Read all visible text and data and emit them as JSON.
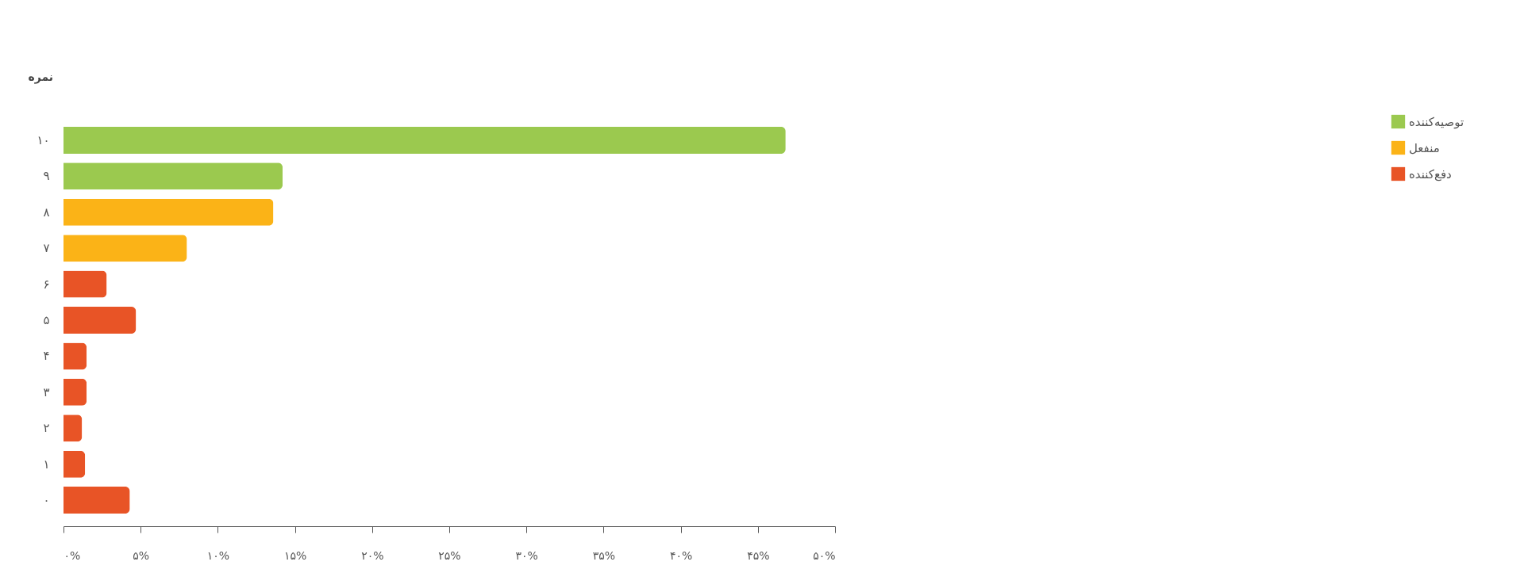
{
  "chart_data": {
    "type": "bar",
    "orientation": "horizontal",
    "stacked": true,
    "ylabel": "نمره",
    "categories": [
      "۱۰",
      "۹",
      "۸",
      "۷",
      "۶",
      "۵",
      "۴",
      "۳",
      "۲",
      "۱",
      "۰"
    ],
    "series": [
      {
        "name": "توصیه‌کننده",
        "color": "#9bc94f",
        "values": [
          46.8,
          14.2,
          null,
          null,
          null,
          null,
          null,
          null,
          null,
          null,
          null
        ]
      },
      {
        "name": "منفعل",
        "color": "#fbb317",
        "values": [
          null,
          null,
          13.6,
          8.0,
          null,
          null,
          null,
          null,
          null,
          null,
          null
        ]
      },
      {
        "name": "دفع‌کننده",
        "color": "#e85426",
        "values": [
          null,
          null,
          null,
          null,
          2.8,
          4.7,
          1.5,
          1.5,
          1.2,
          1.4,
          4.3
        ]
      }
    ],
    "xlim": [
      0,
      50
    ],
    "xticks": [
      {
        "value": 0,
        "label": "۰%"
      },
      {
        "value": 5,
        "label": "۵%"
      },
      {
        "value": 10,
        "label": "۱۰%"
      },
      {
        "value": 15,
        "label": "۱۵%"
      },
      {
        "value": 20,
        "label": "۲۰%"
      },
      {
        "value": 25,
        "label": "۲۵%"
      },
      {
        "value": 30,
        "label": "۳۰%"
      },
      {
        "value": 35,
        "label": "۳۵%"
      },
      {
        "value": 40,
        "label": "۴۰%"
      },
      {
        "value": 45,
        "label": "۴۵%"
      },
      {
        "value": 50,
        "label": "۵۰%"
      }
    ],
    "grid": false,
    "legend": "right"
  }
}
